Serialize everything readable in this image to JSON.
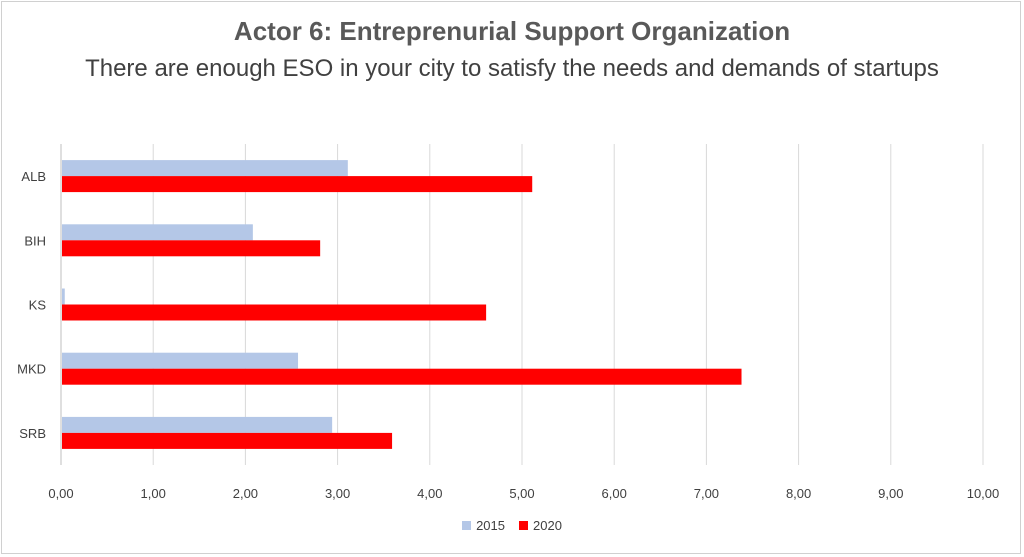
{
  "chart_data": {
    "type": "bar",
    "orientation": "horizontal",
    "title": "Actor 6: Entreprenurial Support Organization",
    "subtitle": "There are enough ESO in your city to satisfy the needs and demands of startups",
    "categories": [
      "ALB",
      "BIH",
      "KS",
      "MKD",
      "SRB"
    ],
    "series": [
      {
        "name": "2015",
        "color": "#b4c7e7",
        "values": [
          3.1,
          2.07,
          0.03,
          2.56,
          2.93
        ]
      },
      {
        "name": "2020",
        "color": "#ff0000",
        "values": [
          5.1,
          2.8,
          4.6,
          7.37,
          3.58
        ]
      }
    ],
    "xlim": [
      0,
      10
    ],
    "xticks": [
      "0,00",
      "1,00",
      "2,00",
      "3,00",
      "4,00",
      "5,00",
      "6,00",
      "7,00",
      "8,00",
      "9,00",
      "10,00"
    ],
    "grid": true,
    "legend_position": "bottom"
  }
}
